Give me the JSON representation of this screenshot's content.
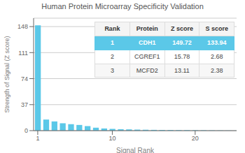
{
  "chart_data": {
    "type": "bar",
    "title": "Human Protein Microarray Specificity Validation",
    "xlabel": "Signal Rank",
    "ylabel": "Strength of Signal (Z score)",
    "x": [
      1,
      2,
      3,
      4,
      5,
      6,
      7,
      8,
      9,
      10,
      11,
      12,
      13,
      14,
      15,
      16,
      17,
      18,
      19,
      20,
      21,
      22,
      23,
      24,
      25
    ],
    "values": [
      149.72,
      15.78,
      13.11,
      10.5,
      9.2,
      8.1,
      6.5,
      4.2,
      3.1,
      2.5,
      2.0,
      1.8,
      1.5,
      1.3,
      1.1,
      1.0,
      0.9,
      0.8,
      0.7,
      0.6,
      0.5,
      0.4,
      0.3,
      0.2,
      0.1
    ],
    "color": "#5bc8e8",
    "xlim": [
      0.5,
      25
    ],
    "xticks": [
      1,
      10,
      20
    ],
    "ylim": [
      0,
      160
    ],
    "yticks": [
      0,
      37,
      74,
      111,
      148
    ],
    "grid": true,
    "table": {
      "columns": [
        "Rank",
        "Protein",
        "Z score",
        "S score"
      ],
      "rows": [
        [
          "1",
          "CDH1",
          "149.72",
          "133.94"
        ],
        [
          "2",
          "CGREF1",
          "15.78",
          "2.68"
        ],
        [
          "3",
          "MCFD2",
          "13.11",
          "2.38"
        ]
      ]
    }
  }
}
